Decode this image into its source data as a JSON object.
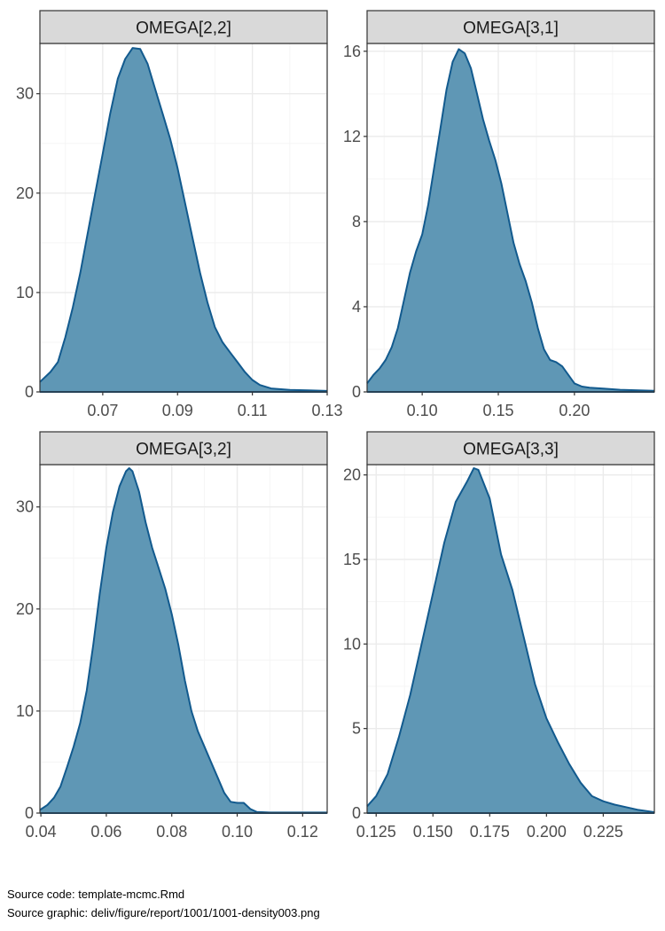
{
  "chart_data": [
    {
      "type": "area",
      "facet": "OMEGA[2,2]",
      "x_ticks": [
        "0.07",
        "0.09",
        "0.11",
        "0.13"
      ],
      "y_ticks": [
        "0",
        "10",
        "20",
        "30"
      ],
      "xlim": [
        0.0532,
        0.13
      ],
      "ylim": [
        0,
        34.7
      ],
      "grid": true,
      "points": [
        [
          0.0532,
          1.0
        ],
        [
          0.056,
          2.0
        ],
        [
          0.058,
          3.0
        ],
        [
          0.06,
          5.5
        ],
        [
          0.062,
          8.5
        ],
        [
          0.064,
          12.0
        ],
        [
          0.066,
          16.0
        ],
        [
          0.068,
          20.0
        ],
        [
          0.07,
          24.0
        ],
        [
          0.072,
          28.0
        ],
        [
          0.074,
          31.5
        ],
        [
          0.076,
          33.5
        ],
        [
          0.078,
          34.6
        ],
        [
          0.08,
          34.5
        ],
        [
          0.082,
          33.0
        ],
        [
          0.084,
          30.5
        ],
        [
          0.086,
          28.0
        ],
        [
          0.088,
          25.5
        ],
        [
          0.09,
          22.5
        ],
        [
          0.092,
          19.0
        ],
        [
          0.094,
          15.5
        ],
        [
          0.096,
          12.0
        ],
        [
          0.098,
          9.0
        ],
        [
          0.1,
          6.5
        ],
        [
          0.102,
          5.0
        ],
        [
          0.104,
          4.0
        ],
        [
          0.106,
          3.0
        ],
        [
          0.108,
          2.0
        ],
        [
          0.11,
          1.2
        ],
        [
          0.112,
          0.7
        ],
        [
          0.115,
          0.35
        ],
        [
          0.12,
          0.2
        ],
        [
          0.125,
          0.15
        ],
        [
          0.13,
          0.1
        ]
      ]
    },
    {
      "type": "area",
      "facet": "OMEGA[3,1]",
      "x_ticks": [
        "0.10",
        "0.15",
        "0.20"
      ],
      "y_ticks": [
        "0",
        "4",
        "8",
        "12",
        "16"
      ],
      "xlim": [
        0.0638,
        0.2525
      ],
      "ylim": [
        0,
        16.2
      ],
      "grid": true,
      "points": [
        [
          0.0638,
          0.4
        ],
        [
          0.068,
          0.8
        ],
        [
          0.072,
          1.1
        ],
        [
          0.076,
          1.5
        ],
        [
          0.08,
          2.1
        ],
        [
          0.084,
          3.0
        ],
        [
          0.088,
          4.3
        ],
        [
          0.092,
          5.6
        ],
        [
          0.096,
          6.6
        ],
        [
          0.1,
          7.4
        ],
        [
          0.104,
          8.8
        ],
        [
          0.108,
          10.6
        ],
        [
          0.112,
          12.4
        ],
        [
          0.116,
          14.2
        ],
        [
          0.12,
          15.5
        ],
        [
          0.124,
          16.1
        ],
        [
          0.128,
          15.9
        ],
        [
          0.132,
          15.2
        ],
        [
          0.136,
          14.0
        ],
        [
          0.14,
          12.8
        ],
        [
          0.144,
          11.8
        ],
        [
          0.148,
          10.9
        ],
        [
          0.152,
          9.8
        ],
        [
          0.156,
          8.4
        ],
        [
          0.16,
          7.0
        ],
        [
          0.164,
          6.0
        ],
        [
          0.168,
          5.2
        ],
        [
          0.172,
          4.2
        ],
        [
          0.176,
          3.0
        ],
        [
          0.18,
          2.0
        ],
        [
          0.184,
          1.5
        ],
        [
          0.188,
          1.4
        ],
        [
          0.192,
          1.2
        ],
        [
          0.196,
          0.8
        ],
        [
          0.2,
          0.4
        ],
        [
          0.205,
          0.25
        ],
        [
          0.21,
          0.2
        ],
        [
          0.22,
          0.15
        ],
        [
          0.23,
          0.1
        ],
        [
          0.2525,
          0.05
        ]
      ]
    },
    {
      "type": "area",
      "facet": "OMEGA[3,2]",
      "x_ticks": [
        "0.04",
        "0.06",
        "0.08",
        "0.10",
        "0.12"
      ],
      "y_ticks": [
        "0",
        "10",
        "20",
        "30"
      ],
      "xlim": [
        0.0397,
        0.1275
      ],
      "ylim": [
        0,
        33.8
      ],
      "grid": true,
      "points": [
        [
          0.0397,
          0.3
        ],
        [
          0.042,
          0.8
        ],
        [
          0.044,
          1.5
        ],
        [
          0.046,
          2.6
        ],
        [
          0.048,
          4.5
        ],
        [
          0.05,
          6.5
        ],
        [
          0.052,
          8.8
        ],
        [
          0.054,
          12.0
        ],
        [
          0.056,
          16.5
        ],
        [
          0.058,
          21.5
        ],
        [
          0.06,
          26.0
        ],
        [
          0.062,
          29.5
        ],
        [
          0.064,
          32.0
        ],
        [
          0.066,
          33.5
        ],
        [
          0.067,
          33.8
        ],
        [
          0.068,
          33.5
        ],
        [
          0.07,
          31.5
        ],
        [
          0.072,
          28.5
        ],
        [
          0.074,
          26.0
        ],
        [
          0.076,
          24.0
        ],
        [
          0.078,
          22.0
        ],
        [
          0.08,
          19.5
        ],
        [
          0.082,
          16.5
        ],
        [
          0.084,
          13.0
        ],
        [
          0.086,
          10.0
        ],
        [
          0.088,
          8.0
        ],
        [
          0.09,
          6.5
        ],
        [
          0.092,
          5.0
        ],
        [
          0.094,
          3.5
        ],
        [
          0.096,
          2.0
        ],
        [
          0.098,
          1.1
        ],
        [
          0.1,
          1.0
        ],
        [
          0.102,
          1.0
        ],
        [
          0.104,
          0.4
        ],
        [
          0.106,
          0.1
        ],
        [
          0.11,
          0.05
        ],
        [
          0.1275,
          0.05
        ]
      ]
    },
    {
      "type": "area",
      "facet": "OMEGA[3,3]",
      "x_ticks": [
        "0.125",
        "0.150",
        "0.175",
        "0.200",
        "0.225"
      ],
      "y_ticks": [
        "0",
        "5",
        "10",
        "15",
        "20"
      ],
      "xlim": [
        0.121,
        0.2475
      ],
      "ylim": [
        0,
        20.4
      ],
      "grid": true,
      "points": [
        [
          0.121,
          0.4
        ],
        [
          0.125,
          1.0
        ],
        [
          0.13,
          2.3
        ],
        [
          0.135,
          4.5
        ],
        [
          0.14,
          7.0
        ],
        [
          0.145,
          10.0
        ],
        [
          0.15,
          13.0
        ],
        [
          0.155,
          16.0
        ],
        [
          0.16,
          18.4
        ],
        [
          0.165,
          19.6
        ],
        [
          0.168,
          20.4
        ],
        [
          0.17,
          20.3
        ],
        [
          0.175,
          18.6
        ],
        [
          0.18,
          15.3
        ],
        [
          0.185,
          13.2
        ],
        [
          0.19,
          10.4
        ],
        [
          0.195,
          7.6
        ],
        [
          0.2,
          5.6
        ],
        [
          0.205,
          4.2
        ],
        [
          0.21,
          2.9
        ],
        [
          0.215,
          1.8
        ],
        [
          0.22,
          1.0
        ],
        [
          0.225,
          0.7
        ],
        [
          0.23,
          0.5
        ],
        [
          0.235,
          0.35
        ],
        [
          0.24,
          0.2
        ],
        [
          0.2475,
          0.05
        ]
      ]
    }
  ],
  "colors": {
    "fill": "#5f97b5",
    "line": "#125a8e",
    "strip_bg": "#d9d9d9",
    "grid_major": "#ebebeb",
    "grid_minor": "#f5f5f5",
    "panel_border": "#333333"
  },
  "caption": {
    "line1": "Source code: template-mcmc.Rmd",
    "line2": "Source graphic: deliv/figure/report/1001/1001-density003.png"
  }
}
